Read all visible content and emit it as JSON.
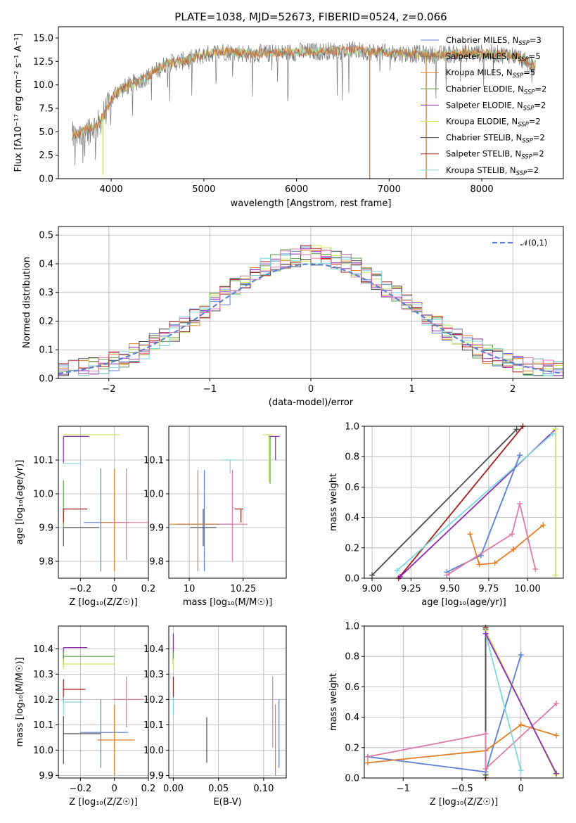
{
  "colors": {
    "Chabrier MILES": "#5a7fd6",
    "Salpeter MILES": "#777777",
    "Kroupa MILES": "#e07f26",
    "Chabrier ELODIE": "#5f9f4a",
    "Salpeter ELODIE": "#8e2ab5",
    "Kroupa ELODIE": "#c9e660",
    "Chabrier STELIB": "#4b4b4b",
    "Salpeter STELIB": "#a81c1c",
    "Kroupa STELIB": "#7dd8dd",
    "spectrum": "#777777",
    "pink": "#e07aa8"
  },
  "chart_data": [
    {
      "id": "spectrum",
      "type": "line",
      "title": "PLATE=1038, MJD=52673, FIBERID=0524, z=0.066",
      "xlabel": "wavelength [Angstrom, rest frame]",
      "ylabel": "Flux [fλ10⁻¹⁷ erg cm⁻² s⁻¹ A⁻¹]",
      "xlim": [
        3430,
        8880
      ],
      "ylim": [
        0,
        16.2
      ],
      "xticks": [
        4000,
        5000,
        6000,
        7000,
        8000
      ],
      "yticks": [
        0.0,
        2.5,
        5.0,
        7.5,
        10.0,
        12.5,
        15.0
      ],
      "legend": {
        "placement": "top-right",
        "entries": [
          {
            "name": "Chabrier MILES",
            "label": "Chabrier MILES, N",
            "sub": "SSP",
            "suffix": "=3"
          },
          {
            "name": "Salpeter MILES",
            "label": "Salpeter MILES, N",
            "sub": "SSP",
            "suffix": "=5"
          },
          {
            "name": "Kroupa MILES",
            "label": "Kroupa MILES, N",
            "sub": "SSP",
            "suffix": "=5"
          },
          {
            "name": "Chabrier ELODIE",
            "label": "Chabrier ELODIE, N",
            "sub": "SSP",
            "suffix": "=2"
          },
          {
            "name": "Salpeter ELODIE",
            "label": "Salpeter ELODIE, N",
            "sub": "SSP",
            "suffix": "=2"
          },
          {
            "name": "Kroupa ELODIE",
            "label": "Kroupa ELODIE, N",
            "sub": "SSP",
            "suffix": "=2"
          },
          {
            "name": "Chabrier STELIB",
            "label": "Chabrier STELIB, N",
            "sub": "SSP",
            "suffix": "=2"
          },
          {
            "name": "Salpeter STELIB",
            "label": "Salpeter STELIB, N",
            "sub": "SSP",
            "suffix": "=2"
          },
          {
            "name": "Kroupa STELIB",
            "label": "Kroupa STELIB, N",
            "sub": "SSP",
            "suffix": "=2"
          }
        ]
      },
      "continuum": {
        "x": [
          3580,
          3700,
          3850,
          3950,
          4050,
          4200,
          4400,
          4600,
          4800,
          5000,
          5200,
          5500,
          5800,
          6000,
          6300,
          6600,
          7000,
          7300,
          7500,
          7700,
          7900,
          8100,
          8300,
          8400,
          8450,
          8500,
          8600,
          8700
        ],
        "y": [
          4.5,
          5.2,
          5.6,
          7.4,
          9.2,
          10.0,
          10.9,
          12.3,
          12.6,
          13.2,
          13.6,
          13.3,
          13.4,
          13.5,
          13.6,
          13.7,
          13.4,
          13.3,
          13.2,
          13.3,
          13.4,
          13.3,
          13.2,
          13.0,
          12.6,
          12.3,
          12.0,
          11.7
        ]
      },
      "spikes": [
        {
          "x": 3910,
          "series": "Kroupa ELODIE",
          "y": 0.4
        },
        {
          "x": 6790,
          "series": "Kroupa MILES",
          "y": 0.0
        },
        {
          "x": 7400,
          "series": "Kroupa MILES",
          "y": 0.0
        },
        {
          "x": 8550,
          "series": "Kroupa STELIB",
          "y": 11.0
        }
      ]
    },
    {
      "id": "residuals",
      "type": "step",
      "xlabel": "(data-model)/error",
      "ylabel": "Normed distribution",
      "xlim": [
        -2.5,
        2.5
      ],
      "ylim": [
        0,
        0.53
      ],
      "xticks": [
        -2,
        -1,
        0,
        1,
        2
      ],
      "yticks": [
        0.0,
        0.1,
        0.2,
        0.3,
        0.4,
        0.5
      ],
      "legend": {
        "placement": "top-right",
        "label": "𝒩(0,1)"
      },
      "gaussian": {
        "mu": 0,
        "sigma": 1
      }
    },
    {
      "id": "age-vs-Z",
      "type": "errorbar",
      "xlabel": "Z [log₁₀(Z/Z☉)]",
      "ylabel": "age  [log₁₀(age/yr)]",
      "xlim": [
        -0.33,
        0.2
      ],
      "ylim": [
        9.75,
        10.2
      ],
      "xticks": [
        -0.2,
        0.0,
        0.2
      ],
      "yticks": [
        9.8,
        9.9,
        10.0,
        10.1
      ],
      "points": [
        {
          "series": "Kroupa ELODIE",
          "x": -0.3,
          "y": 10.175,
          "xerr": [
            0,
            0.33
          ],
          "yerr": [
            0,
            0
          ]
        },
        {
          "series": "Salpeter ELODIE",
          "x": -0.3,
          "y": 10.17,
          "xerr": [
            0,
            0.15
          ],
          "yerr": [
            0.08,
            0
          ]
        },
        {
          "series": "Kroupa STELIB",
          "x": -0.3,
          "y": 10.09,
          "xerr": [
            0,
            0.1
          ],
          "yerr": [
            0,
            0
          ]
        },
        {
          "series": "Chabrier ELODIE",
          "x": -0.3,
          "y": 10.04,
          "xerr": [
            0,
            0
          ],
          "yerr": [
            0.14,
            0
          ]
        },
        {
          "series": "Salpeter STELIB",
          "x": -0.3,
          "y": 9.955,
          "xerr": [
            0,
            0.14
          ],
          "yerr": [
            0.04,
            0
          ]
        },
        {
          "series": "Chabrier STELIB",
          "x": -0.3,
          "y": 9.9,
          "xerr": [
            0,
            0.21
          ],
          "yerr": [
            0.055,
            0
          ]
        },
        {
          "series": "Chabrier MILES",
          "x": -0.08,
          "y": 9.915,
          "xerr": [
            0.1,
            0.16
          ],
          "yerr": [
            0.145,
            0.16
          ]
        },
        {
          "series": "Kroupa MILES",
          "x": 0.0,
          "y": 9.915,
          "xerr": [
            0.08,
            0.09
          ],
          "yerr": [
            0.145,
            0.16
          ]
        },
        {
          "series": "pink",
          "x": 0.07,
          "y": 9.915,
          "xerr": [
            0.08,
            0.13
          ],
          "yerr": [
            0.11,
            0.16
          ]
        }
      ]
    },
    {
      "id": "age-vs-mass",
      "type": "errorbar",
      "xlabel": "mass [log₁₀(M/M☉)]",
      "ylabel": "",
      "xlim": [
        9.905,
        10.45
      ],
      "ylim": [
        9.75,
        10.2
      ],
      "xticks": [
        10.0,
        10.25
      ],
      "yticks": [
        9.8,
        9.9,
        10.0,
        10.1
      ],
      "points": [
        {
          "series": "Kroupa ELODIE",
          "x": 10.37,
          "y": 10.175,
          "xerr": [
            0.03,
            0.02
          ],
          "yerr": [
            0.14,
            0
          ]
        },
        {
          "series": "Salpeter ELODIE",
          "x": 10.4,
          "y": 10.17,
          "xerr": [
            0.03,
            0.02
          ],
          "yerr": [
            0.07,
            0
          ]
        },
        {
          "series": "Kroupa STELIB",
          "x": 10.19,
          "y": 10.1,
          "xerr": [
            0.03,
            0.03
          ],
          "yerr": [
            0.04,
            0
          ]
        },
        {
          "series": "Chabrier ELODIE",
          "x": 10.375,
          "y": 10.17,
          "xerr": [
            0,
            0
          ],
          "yerr": [
            0.14,
            0
          ]
        },
        {
          "series": "Salpeter STELIB",
          "x": 10.24,
          "y": 9.955,
          "xerr": [
            0.03,
            0.01
          ],
          "yerr": [
            0.04,
            0
          ]
        },
        {
          "series": "Chabrier STELIB",
          "x": 10.065,
          "y": 9.9,
          "xerr": [
            0.06,
            0.06
          ],
          "yerr": [
            0.055,
            0.055
          ]
        },
        {
          "series": "Chabrier MILES",
          "x": 10.07,
          "y": 9.91,
          "xerr": [
            0.13,
            0.13
          ],
          "yerr": [
            0.14,
            0.16
          ]
        },
        {
          "series": "Kroupa MILES",
          "x": 10.04,
          "y": 9.91,
          "xerr": [
            0.13,
            0.1
          ],
          "yerr": [
            0.14,
            0.16
          ]
        },
        {
          "series": "pink",
          "x": 10.2,
          "y": 9.91,
          "xerr": [
            0.07,
            0.07
          ],
          "yerr": [
            0.11,
            0.16
          ]
        }
      ]
    },
    {
      "id": "massweight-vs-age",
      "type": "line",
      "xlabel": "age  [log₁₀(age/yr)]",
      "ylabel": "mass weight",
      "xlim": [
        8.95,
        10.23
      ],
      "ylim": [
        0,
        1
      ],
      "xticks": [
        9.0,
        9.25,
        9.5,
        9.75,
        10.0
      ],
      "yticks": [
        0.0,
        0.2,
        0.4,
        0.6,
        0.8,
        1.0
      ],
      "series": [
        {
          "name": "Chabrier STELIB",
          "x": [
            9.0,
            9.93
          ],
          "y": [
            0.02,
            0.98
          ]
        },
        {
          "name": "Salpeter STELIB",
          "x": [
            9.17,
            9.97
          ],
          "y": [
            0.0,
            1.0
          ]
        },
        {
          "name": "Salpeter ELODIE",
          "x": [
            9.18,
            10.18
          ],
          "y": [
            0.01,
            0.98
          ]
        },
        {
          "name": "Kroupa STELIB",
          "x": [
            9.16,
            10.16
          ],
          "y": [
            0.05,
            0.95
          ]
        },
        {
          "name": "Kroupa ELODIE",
          "x": [
            10.18,
            10.18
          ],
          "y": [
            0.98,
            0.02
          ]
        },
        {
          "name": "Chabrier MILES",
          "x": [
            9.48,
            9.7,
            9.95
          ],
          "y": [
            0.04,
            0.15,
            0.81
          ]
        },
        {
          "name": "Kroupa MILES",
          "x": [
            9.63,
            9.69,
            9.79,
            9.91,
            10.1
          ],
          "y": [
            0.29,
            0.09,
            0.1,
            0.19,
            0.35
          ]
        },
        {
          "name": "pink",
          "x": [
            9.48,
            9.9,
            9.95,
            10.05
          ],
          "y": [
            0.02,
            0.29,
            0.49,
            0.06
          ]
        }
      ]
    },
    {
      "id": "mass-vs-Z",
      "type": "errorbar",
      "xlabel": "Z [log₁₀(Z/Z☉)]",
      "ylabel": "mass [log₁₀(M/M☉)]",
      "xlim": [
        -0.33,
        0.2
      ],
      "ylim": [
        9.89,
        10.49
      ],
      "xticks": [
        -0.2,
        0.0,
        0.2
      ],
      "yticks": [
        9.9,
        10.0,
        10.1,
        10.2,
        10.3,
        10.4
      ],
      "points": [
        {
          "series": "Salpeter ELODIE",
          "x": -0.3,
          "y": 10.405,
          "xerr": [
            0,
            0.14
          ],
          "yerr": [
            0.06,
            0
          ]
        },
        {
          "series": "Chabrier ELODIE",
          "x": -0.3,
          "y": 10.37,
          "xerr": [
            0,
            0.3
          ],
          "yerr": [
            0.04,
            0.02
          ]
        },
        {
          "series": "Kroupa ELODIE",
          "x": -0.3,
          "y": 10.34,
          "xerr": [
            0,
            0.3
          ],
          "yerr": [
            0.02,
            0.02
          ]
        },
        {
          "series": "Salpeter STELIB",
          "x": -0.3,
          "y": 10.24,
          "xerr": [
            0,
            0.13
          ],
          "yerr": [
            0.05,
            0.04
          ]
        },
        {
          "series": "Kroupa STELIB",
          "x": -0.3,
          "y": 10.19,
          "xerr": [
            0,
            0.11
          ],
          "yerr": [
            0.05,
            0.02
          ]
        },
        {
          "series": "Chabrier STELIB",
          "x": -0.3,
          "y": 10.065,
          "xerr": [
            0,
            0.22
          ],
          "yerr": [
            0.12,
            0.07
          ]
        },
        {
          "series": "pink",
          "x": 0.07,
          "y": 10.2,
          "xerr": [
            0.08,
            0.1
          ],
          "yerr": [
            0.11,
            0.09
          ]
        },
        {
          "series": "Chabrier MILES",
          "x": -0.08,
          "y": 10.07,
          "xerr": [
            0.12,
            0.16
          ],
          "yerr": [
            0.14,
            0.13
          ]
        },
        {
          "series": "Kroupa MILES",
          "x": 0.0,
          "y": 10.04,
          "xerr": [
            0.1,
            0.12
          ],
          "yerr": [
            0.14,
            0.14
          ]
        }
      ]
    },
    {
      "id": "mass-vs-EBV",
      "type": "errorbar",
      "xlabel": "E(B-V)",
      "ylabel": "",
      "xlim": [
        -0.005,
        0.125
      ],
      "ylim": [
        9.89,
        10.49
      ],
      "xticks": [
        0.0,
        0.05,
        0.1
      ],
      "yticks": [
        9.9,
        10.0,
        10.1,
        10.2,
        10.3,
        10.4
      ],
      "points": [
        {
          "series": "Salpeter ELODIE",
          "x": 0.0,
          "y": 10.4,
          "xerr": [
            0,
            0
          ],
          "yerr": [
            0.06,
            0.06
          ]
        },
        {
          "series": "Chabrier ELODIE",
          "x": 0.0,
          "y": 10.37,
          "xerr": [
            0,
            0
          ],
          "yerr": [
            0.03,
            0.02
          ]
        },
        {
          "series": "Kroupa ELODIE",
          "x": 0.0,
          "y": 10.34,
          "xerr": [
            0,
            0
          ],
          "yerr": [
            0.02,
            0.02
          ]
        },
        {
          "series": "Salpeter STELIB",
          "x": 0.0,
          "y": 10.25,
          "xerr": [
            0,
            0
          ],
          "yerr": [
            0.05,
            0.04
          ]
        },
        {
          "series": "Kroupa STELIB",
          "x": 0.0,
          "y": 10.19,
          "xerr": [
            0,
            0
          ],
          "yerr": [
            0.05,
            0.02
          ]
        },
        {
          "series": "Chabrier STELIB",
          "x": 0.037,
          "y": 10.04,
          "xerr": [
            0,
            0
          ],
          "yerr": [
            0.09,
            0.09
          ]
        },
        {
          "series": "pink",
          "x": 0.11,
          "y": 10.12,
          "xerr": [
            0,
            0
          ],
          "yerr": [
            0.11,
            0.17
          ]
        },
        {
          "series": "Kroupa MILES",
          "x": 0.113,
          "y": 10.04,
          "xerr": [
            0,
            0
          ],
          "yerr": [
            0.14,
            0.14
          ]
        },
        {
          "series": "Chabrier MILES",
          "x": 0.117,
          "y": 10.07,
          "xerr": [
            0,
            0
          ],
          "yerr": [
            0.14,
            0.13
          ]
        }
      ]
    },
    {
      "id": "massweight-vs-Z",
      "type": "line",
      "xlabel": "Z [log₁₀(Z/Z☉)]",
      "ylabel": "mass weight",
      "xlim": [
        -1.33,
        0.36
      ],
      "ylim": [
        0,
        1
      ],
      "xticks": [
        -1.0,
        -0.5,
        0.0
      ],
      "yticks": [
        0.0,
        0.2,
        0.4,
        0.6,
        0.8,
        1.0
      ],
      "series": [
        {
          "name": "Salpeter STELIB",
          "x": [
            -0.3,
            -0.3
          ],
          "y": [
            0.0,
            0.99
          ]
        },
        {
          "name": "Chabrier STELIB",
          "x": [
            -0.3,
            -0.3
          ],
          "y": [
            0.02,
            0.98
          ]
        },
        {
          "name": "Chabrier MILES",
          "x": [
            -1.3,
            -0.3,
            0.0
          ],
          "y": [
            0.14,
            0.04,
            0.81
          ]
        },
        {
          "name": "Kroupa MILES",
          "x": [
            -1.3,
            -0.3,
            0.0,
            0.3
          ],
          "y": [
            0.1,
            0.18,
            0.35,
            0.28
          ]
        },
        {
          "name": "pink",
          "x": [
            -1.3,
            -0.3,
            -0.3,
            0.3
          ],
          "y": [
            0.14,
            0.29,
            0.06,
            0.49
          ]
        },
        {
          "name": "Kroupa STELIB",
          "x": [
            -0.3,
            0.0
          ],
          "y": [
            0.95,
            0.05
          ]
        },
        {
          "name": "Kroupa ELODIE",
          "x": [
            -0.3,
            0.3
          ],
          "y": [
            0.97,
            0.02
          ]
        },
        {
          "name": "Salpeter ELODIE",
          "x": [
            -0.3,
            0.3
          ],
          "y": [
            0.95,
            0.03
          ]
        }
      ]
    }
  ]
}
